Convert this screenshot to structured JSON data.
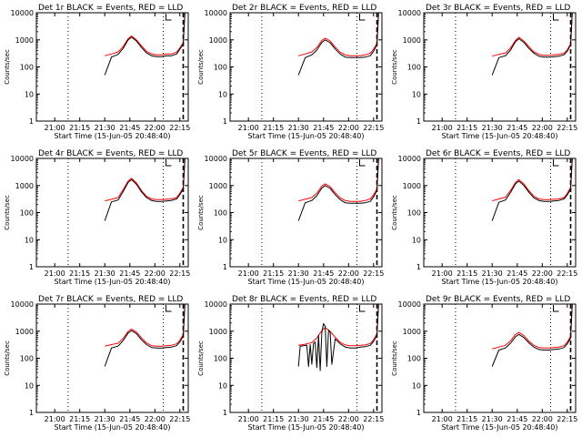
{
  "figure": {
    "start_time": "Start Time (15-Jun-05 20:48:40)",
    "ylabel": "Counts/sec",
    "x_tick_labels": [
      "21:00",
      "21:15",
      "21:30",
      "21:45",
      "22:00",
      "22:15"
    ],
    "y_tick_labels": [
      "1",
      "10",
      "100",
      "1000",
      "10000"
    ],
    "colors": {
      "events": "#000000",
      "lld": "#ff0000",
      "axes": "#000000",
      "background": "#ffffff"
    }
  },
  "chart_data": [
    {
      "type": "line",
      "title": "Det 1r BLACK = Events, RED = LLD",
      "xlabel": "Start Time (15-Jun-05 20:48:40)",
      "ylabel": "Counts/sec",
      "x_range": [
        "20:49",
        "22:20"
      ],
      "ylim": [
        1,
        10000
      ],
      "yscale": "log",
      "time_markers": [
        "21:08",
        "22:05",
        "22:17"
      ],
      "series": [
        {
          "name": "Events",
          "color": "#000000",
          "x": [
            "21:30",
            "21:34",
            "21:38",
            "21:41",
            "21:44",
            "21:46",
            "21:49",
            "21:52",
            "21:55",
            "21:58",
            "22:01",
            "22:04",
            "22:07",
            "22:10",
            "22:13",
            "22:15",
            "22:17",
            "22:18"
          ],
          "y": [
            50,
            230,
            290,
            480,
            1000,
            1250,
            900,
            520,
            330,
            260,
            240,
            240,
            260,
            260,
            300,
            450,
            700,
            10000
          ]
        },
        {
          "name": "LLD",
          "color": "#ff0000",
          "x": [
            "21:30",
            "21:34",
            "21:38",
            "21:41",
            "21:44",
            "21:46",
            "21:49",
            "21:52",
            "21:55",
            "21:58",
            "22:01",
            "22:04",
            "22:07",
            "22:10",
            "22:13",
            "22:15",
            "22:17",
            "22:18"
          ],
          "y": [
            260,
            300,
            360,
            560,
            1100,
            1400,
            1000,
            600,
            380,
            300,
            280,
            280,
            300,
            300,
            350,
            500,
            800,
            10000
          ]
        }
      ]
    },
    {
      "type": "line",
      "title": "Det 2r BLACK = Events, RED = LLD",
      "xlabel": "Start Time (15-Jun-05 20:48:40)",
      "ylabel": "Counts/sec",
      "x_range": [
        "20:49",
        "22:20"
      ],
      "ylim": [
        1,
        10000
      ],
      "yscale": "log",
      "time_markers": [
        "21:08",
        "22:05",
        "22:17"
      ],
      "series": [
        {
          "name": "Events",
          "color": "#000000",
          "x": [
            "21:30",
            "21:34",
            "21:38",
            "21:41",
            "21:44",
            "21:46",
            "21:49",
            "21:52",
            "21:55",
            "21:58",
            "22:01",
            "22:04",
            "22:07",
            "22:10",
            "22:13",
            "22:15",
            "22:17",
            "22:18"
          ],
          "y": [
            50,
            220,
            280,
            420,
            800,
            1000,
            780,
            460,
            300,
            230,
            220,
            220,
            220,
            230,
            260,
            380,
            650,
            10000
          ]
        },
        {
          "name": "LLD",
          "color": "#ff0000",
          "x": [
            "21:30",
            "21:34",
            "21:38",
            "21:41",
            "21:44",
            "21:46",
            "21:49",
            "21:52",
            "21:55",
            "21:58",
            "22:01",
            "22:04",
            "22:07",
            "22:10",
            "22:13",
            "22:15",
            "22:17",
            "22:18"
          ],
          "y": [
            260,
            300,
            360,
            520,
            950,
            1150,
            900,
            540,
            350,
            280,
            260,
            260,
            260,
            280,
            320,
            450,
            750,
            10000
          ]
        }
      ]
    },
    {
      "type": "line",
      "title": "Det 3r BLACK = Events, RED = LLD",
      "xlabel": "Start Time (15-Jun-05 20:48:40)",
      "ylabel": "Counts/sec",
      "x_range": [
        "20:49",
        "22:20"
      ],
      "ylim": [
        1,
        10000
      ],
      "yscale": "log",
      "time_markers": [
        "21:08",
        "22:05",
        "22:17"
      ],
      "series": [
        {
          "name": "Events",
          "color": "#000000",
          "x": [
            "21:30",
            "21:34",
            "21:38",
            "21:41",
            "21:44",
            "21:46",
            "21:49",
            "21:52",
            "21:55",
            "21:58",
            "22:01",
            "22:04",
            "22:07",
            "22:10",
            "22:13",
            "22:15",
            "22:17",
            "22:18"
          ],
          "y": [
            50,
            220,
            260,
            420,
            850,
            1100,
            800,
            480,
            320,
            250,
            230,
            230,
            240,
            250,
            280,
            380,
            650,
            10000
          ]
        },
        {
          "name": "LLD",
          "color": "#ff0000",
          "x": [
            "21:30",
            "21:34",
            "21:38",
            "21:41",
            "21:44",
            "21:46",
            "21:49",
            "21:52",
            "21:55",
            "21:58",
            "22:01",
            "22:04",
            "22:07",
            "22:10",
            "22:13",
            "22:15",
            "22:17",
            "22:18"
          ],
          "y": [
            250,
            290,
            330,
            500,
            950,
            1250,
            900,
            560,
            360,
            290,
            270,
            270,
            280,
            290,
            320,
            430,
            720,
            10000
          ]
        }
      ]
    },
    {
      "type": "line",
      "title": "Det 4r BLACK = Events, RED = LLD",
      "xlabel": "Start Time (15-Jun-05 20:48:40)",
      "ylabel": "Counts/sec",
      "x_range": [
        "20:49",
        "22:20"
      ],
      "ylim": [
        1,
        10000
      ],
      "yscale": "log",
      "time_markers": [
        "21:08",
        "22:05",
        "22:17"
      ],
      "series": [
        {
          "name": "Events",
          "color": "#000000",
          "x": [
            "21:30",
            "21:34",
            "21:38",
            "21:41",
            "21:44",
            "21:46",
            "21:49",
            "21:52",
            "21:55",
            "21:58",
            "22:01",
            "22:04",
            "22:07",
            "22:10",
            "22:13",
            "22:15",
            "22:17",
            "22:18"
          ],
          "y": [
            50,
            250,
            290,
            600,
            1300,
            1650,
            1100,
            580,
            360,
            280,
            260,
            260,
            270,
            280,
            320,
            460,
            750,
            10000
          ]
        },
        {
          "name": "LLD",
          "color": "#ff0000",
          "x": [
            "21:30",
            "21:34",
            "21:38",
            "21:41",
            "21:44",
            "21:46",
            "21:49",
            "21:52",
            "21:55",
            "21:58",
            "22:01",
            "22:04",
            "22:07",
            "22:10",
            "22:13",
            "22:15",
            "22:17",
            "22:18"
          ],
          "y": [
            270,
            310,
            360,
            700,
            1450,
            1850,
            1250,
            650,
            400,
            320,
            300,
            300,
            310,
            320,
            360,
            520,
            850,
            10000
          ]
        }
      ]
    },
    {
      "type": "line",
      "title": "Det 5r BLACK = Events, RED = LLD",
      "xlabel": "Start Time (15-Jun-05 20:48:40)",
      "ylabel": "Counts/sec",
      "x_range": [
        "20:49",
        "22:20"
      ],
      "ylim": [
        1,
        10000
      ],
      "yscale": "log",
      "time_markers": [
        "21:08",
        "22:05",
        "22:17"
      ],
      "series": [
        {
          "name": "Events",
          "color": "#000000",
          "x": [
            "21:30",
            "21:34",
            "21:38",
            "21:41",
            "21:44",
            "21:46",
            "21:49",
            "21:52",
            "21:55",
            "21:58",
            "22:01",
            "22:04",
            "22:07",
            "22:10",
            "22:13",
            "22:15",
            "22:17",
            "22:18"
          ],
          "y": [
            50,
            230,
            280,
            420,
            800,
            1000,
            780,
            460,
            300,
            230,
            220,
            220,
            220,
            230,
            260,
            380,
            650,
            10000
          ]
        },
        {
          "name": "LLD",
          "color": "#ff0000",
          "x": [
            "21:30",
            "21:34",
            "21:38",
            "21:41",
            "21:44",
            "21:46",
            "21:49",
            "21:52",
            "21:55",
            "21:58",
            "22:01",
            "22:04",
            "22:07",
            "22:10",
            "22:13",
            "22:15",
            "22:17",
            "22:18"
          ],
          "y": [
            270,
            310,
            360,
            520,
            950,
            1150,
            900,
            540,
            350,
            280,
            260,
            260,
            260,
            280,
            320,
            450,
            750,
            10000
          ]
        }
      ]
    },
    {
      "type": "line",
      "title": "Det 6r BLACK = Events, RED = LLD",
      "xlabel": "Start Time (15-Jun-05 20:48:40)",
      "ylabel": "Counts/sec",
      "x_range": [
        "20:49",
        "22:20"
      ],
      "ylim": [
        1,
        10000
      ],
      "yscale": "log",
      "time_markers": [
        "21:08",
        "22:05",
        "22:17"
      ],
      "series": [
        {
          "name": "Events",
          "color": "#000000",
          "x": [
            "21:30",
            "21:34",
            "21:38",
            "21:41",
            "21:44",
            "21:46",
            "21:49",
            "21:52",
            "21:55",
            "21:58",
            "22:01",
            "22:04",
            "22:07",
            "22:10",
            "22:13",
            "22:15",
            "22:17",
            "22:18"
          ],
          "y": [
            50,
            240,
            290,
            550,
            1150,
            1450,
            1000,
            560,
            350,
            280,
            260,
            260,
            270,
            280,
            320,
            450,
            750,
            10000
          ]
        },
        {
          "name": "LLD",
          "color": "#ff0000",
          "x": [
            "21:30",
            "21:34",
            "21:38",
            "21:41",
            "21:44",
            "21:46",
            "21:49",
            "21:52",
            "21:55",
            "21:58",
            "22:01",
            "22:04",
            "22:07",
            "22:10",
            "22:13",
            "22:15",
            "22:17",
            "22:18"
          ],
          "y": [
            270,
            320,
            370,
            650,
            1300,
            1650,
            1150,
            640,
            400,
            320,
            300,
            300,
            310,
            320,
            360,
            510,
            850,
            10000
          ]
        }
      ]
    },
    {
      "type": "line",
      "title": "Det 7r BLACK = Events, RED = LLD",
      "xlabel": "Start Time (15-Jun-05 20:48:40)",
      "ylabel": "Counts/sec",
      "x_range": [
        "20:49",
        "22:20"
      ],
      "ylim": [
        1,
        10000
      ],
      "yscale": "log",
      "time_markers": [
        "21:08",
        "22:05",
        "22:17"
      ],
      "series": [
        {
          "name": "Events",
          "color": "#000000",
          "x": [
            "21:30",
            "21:34",
            "21:38",
            "21:41",
            "21:44",
            "21:46",
            "21:49",
            "21:52",
            "21:55",
            "21:58",
            "22:01",
            "22:04",
            "22:07",
            "22:10",
            "22:13",
            "22:15",
            "22:17",
            "22:18"
          ],
          "y": [
            50,
            240,
            280,
            450,
            850,
            1050,
            800,
            480,
            320,
            250,
            240,
            240,
            250,
            260,
            290,
            400,
            650,
            10000
          ]
        },
        {
          "name": "LLD",
          "color": "#ff0000",
          "x": [
            "21:30",
            "21:34",
            "21:38",
            "21:41",
            "21:44",
            "21:46",
            "21:49",
            "21:52",
            "21:55",
            "21:58",
            "22:01",
            "22:04",
            "22:07",
            "22:10",
            "22:13",
            "22:15",
            "22:17",
            "22:18"
          ],
          "y": [
            280,
            320,
            360,
            540,
            980,
            1200,
            920,
            560,
            370,
            290,
            280,
            280,
            290,
            300,
            340,
            460,
            760,
            10000
          ]
        }
      ]
    },
    {
      "type": "line",
      "title": "Det 8r BLACK = Events, RED = LLD",
      "xlabel": "Start Time (15-Jun-05 20:48:40)",
      "ylabel": "Counts/sec",
      "x_range": [
        "20:49",
        "22:20"
      ],
      "ylim": [
        1,
        10000
      ],
      "yscale": "log",
      "time_markers": [
        "21:08",
        "22:05",
        "22:17"
      ],
      "series": [
        {
          "name": "Events",
          "color": "#000000",
          "x": [
            "21:30",
            "21:31",
            "21:33",
            "21:35",
            "21:36",
            "21:37",
            "21:38",
            "21:39",
            "21:40",
            "21:41",
            "21:42",
            "21:43",
            "21:44",
            "21:45",
            "21:46",
            "21:47",
            "21:48",
            "21:49",
            "21:50",
            "21:52",
            "21:55",
            "21:58",
            "22:01",
            "22:04",
            "22:07",
            "22:10",
            "22:13",
            "22:15",
            "22:17",
            "22:18"
          ],
          "y": [
            50,
            280,
            290,
            300,
            50,
            320,
            60,
            360,
            400,
            45,
            700,
            35,
            900,
            1900,
            1500,
            50,
            1100,
            900,
            60,
            520,
            340,
            260,
            240,
            240,
            260,
            270,
            300,
            420,
            700,
            10000
          ]
        },
        {
          "name": "LLD",
          "color": "#ff0000",
          "x": [
            "21:30",
            "21:34",
            "21:38",
            "21:41",
            "21:44",
            "21:46",
            "21:49",
            "21:52",
            "21:55",
            "21:58",
            "22:01",
            "22:04",
            "22:07",
            "22:10",
            "22:13",
            "22:15",
            "22:17",
            "22:18"
          ],
          "y": [
            300,
            330,
            380,
            560,
            1050,
            1350,
            980,
            600,
            390,
            310,
            290,
            290,
            300,
            310,
            350,
            480,
            800,
            10000
          ]
        }
      ]
    },
    {
      "type": "line",
      "title": "Det 9r BLACK = Events, RED = LLD",
      "xlabel": "Start Time (15-Jun-05 20:48:40)",
      "ylabel": "Counts/sec",
      "x_range": [
        "20:49",
        "22:20"
      ],
      "ylim": [
        1,
        10000
      ],
      "yscale": "log",
      "time_markers": [
        "21:08",
        "22:05",
        "22:17"
      ],
      "series": [
        {
          "name": "Events",
          "color": "#000000",
          "x": [
            "21:30",
            "21:34",
            "21:38",
            "21:41",
            "21:44",
            "21:46",
            "21:49",
            "21:52",
            "21:55",
            "21:58",
            "22:01",
            "22:04",
            "22:07",
            "22:10",
            "22:13",
            "22:15",
            "22:17",
            "22:18"
          ],
          "y": [
            50,
            200,
            240,
            360,
            620,
            760,
            580,
            370,
            260,
            210,
            200,
            200,
            210,
            220,
            250,
            340,
            560,
            10000
          ]
        },
        {
          "name": "LLD",
          "color": "#ff0000",
          "x": [
            "21:30",
            "21:34",
            "21:38",
            "21:41",
            "21:44",
            "21:46",
            "21:49",
            "21:52",
            "21:55",
            "21:58",
            "22:01",
            "22:04",
            "22:07",
            "22:10",
            "22:13",
            "22:15",
            "22:17",
            "22:18"
          ],
          "y": [
            220,
            260,
            300,
            440,
            760,
            900,
            680,
            430,
            300,
            250,
            240,
            240,
            250,
            260,
            290,
            390,
            650,
            10000
          ]
        }
      ]
    }
  ]
}
